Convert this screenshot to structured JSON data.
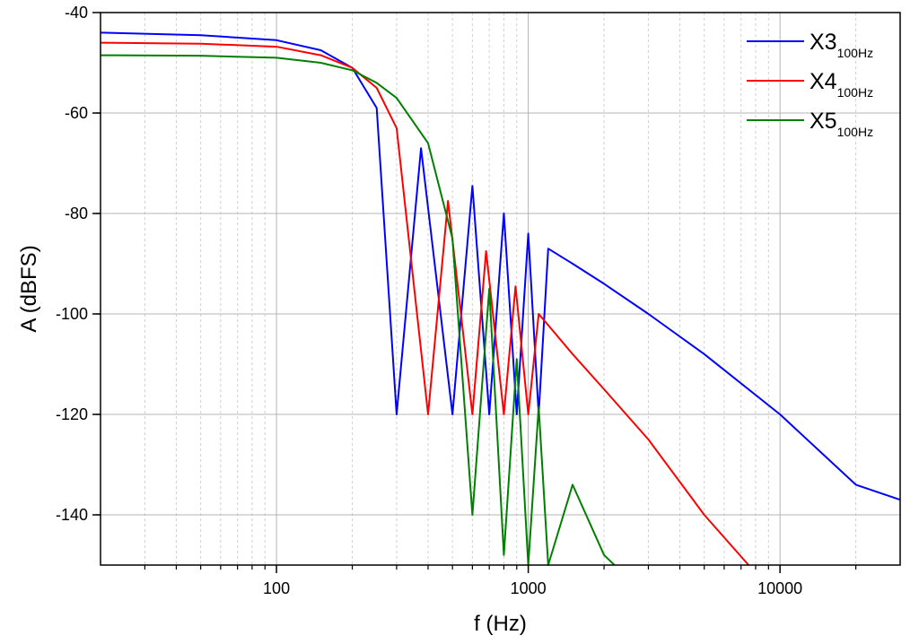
{
  "chart_data": {
    "type": "line",
    "title": "",
    "xlabel": "f (Hz)",
    "ylabel": "A (dBFS)",
    "xscale": "log",
    "xlim": [
      20,
      30000
    ],
    "ylim": [
      -150,
      -40
    ],
    "xticks": [
      100,
      1000,
      10000
    ],
    "xtick_labels": [
      "100",
      "1000",
      "10000"
    ],
    "yticks": [
      -40,
      -60,
      -80,
      -100,
      -120,
      -140
    ],
    "ytick_labels": [
      "-40",
      "-60",
      "-80",
      "-100",
      "-120",
      "-140"
    ],
    "grid": true,
    "legend_position": "top-right",
    "series": [
      {
        "name": "X3",
        "name_subscript": "100Hz",
        "color": "#0000ff",
        "x": [
          20,
          50,
          100,
          150,
          200,
          250,
          300,
          375,
          500,
          600,
          700,
          800,
          900,
          1000,
          1100,
          1200,
          1500,
          2000,
          3000,
          5000,
          10000,
          20000,
          30000
        ],
        "y": [
          -44,
          -44.5,
          -45.5,
          -47.5,
          -51,
          -59,
          -120,
          -67,
          -120,
          -74.5,
          -120,
          -80,
          -120,
          -84,
          -120,
          -87,
          -90,
          -94,
          -100,
          -108,
          -120,
          -134,
          -137
        ]
      },
      {
        "name": "X4",
        "name_subscript": "100Hz",
        "color": "#ff0000",
        "x": [
          20,
          50,
          100,
          150,
          200,
          250,
          300,
          400,
          480,
          600,
          680,
          800,
          890,
          1000,
          1100,
          1500,
          2000,
          3000,
          5000,
          7500
        ],
        "y": [
          -46,
          -46.2,
          -46.8,
          -48.5,
          -51,
          -55,
          -63,
          -120,
          -77.5,
          -120,
          -87.5,
          -120,
          -94.5,
          -120,
          -100,
          -108,
          -115,
          -125,
          -140,
          -150
        ]
      },
      {
        "name": "X5",
        "name_subscript": "100Hz",
        "color": "#008000",
        "x": [
          20,
          50,
          100,
          150,
          200,
          250,
          300,
          400,
          500,
          600,
          700,
          800,
          900,
          1000,
          1100,
          1200,
          1500,
          2000,
          2200
        ],
        "y": [
          -48.5,
          -48.6,
          -49,
          -50,
          -51.5,
          -54,
          -57,
          -66,
          -85,
          -140,
          -95,
          -148,
          -109,
          -150,
          -118.5,
          -150,
          -134,
          -148,
          -150
        ]
      }
    ]
  }
}
